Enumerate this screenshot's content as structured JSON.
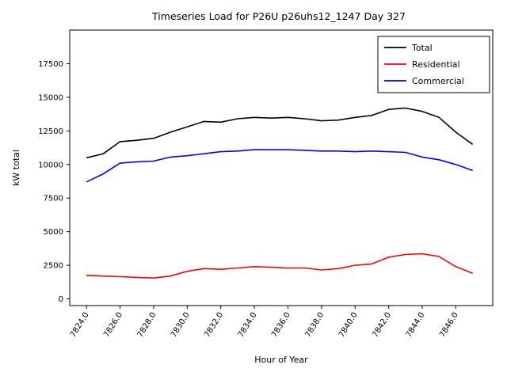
{
  "chart_data": {
    "type": "line",
    "title": "Timeseries Load for P26U p26uhs12_1247  Day 327",
    "xlabel": "Hour of Year",
    "ylabel": "kW total",
    "xlim": [
      7823.0,
      7848.2
    ],
    "ylim": [
      -500,
      20000
    ],
    "grid": false,
    "legend_position": "upper-right",
    "xtick_labels": [
      "7824.0",
      "7826.0",
      "7828.0",
      "7830.0",
      "7832.0",
      "7834.0",
      "7836.0",
      "7838.0",
      "7840.0",
      "7842.0",
      "7844.0",
      "7846.0"
    ],
    "xtick_values": [
      7824,
      7826,
      7828,
      7830,
      7832,
      7834,
      7836,
      7838,
      7840,
      7842,
      7844,
      7846
    ],
    "ytick_values": [
      0,
      2500,
      5000,
      7500,
      10000,
      12500,
      15000,
      17500
    ],
    "x": [
      7824,
      7825,
      7826,
      7827,
      7828,
      7829,
      7830,
      7831,
      7832,
      7833,
      7834,
      7835,
      7836,
      7837,
      7838,
      7839,
      7840,
      7841,
      7842,
      7843,
      7844,
      7845,
      7846,
      7847
    ],
    "series": [
      {
        "name": "Total",
        "color": "#000000",
        "values": [
          10500,
          10800,
          11700,
          11800,
          11950,
          12400,
          12800,
          13200,
          13150,
          13400,
          13500,
          13450,
          13500,
          13400,
          13250,
          13300,
          13500,
          13650,
          14100,
          14200,
          13950,
          13500,
          12400,
          11500
        ]
      },
      {
        "name": "Residential",
        "color": "#ff0000",
        "values": [
          1750,
          1700,
          1650,
          1600,
          1550,
          1700,
          2050,
          2250,
          2200,
          2300,
          2400,
          2350,
          2300,
          2300,
          2150,
          2250,
          2500,
          2600,
          3100,
          3300,
          3350,
          3150,
          2400,
          1900
        ]
      },
      {
        "name": "Commercial",
        "color": "#0000ff",
        "values": [
          8700,
          9300,
          10100,
          10200,
          10250,
          10550,
          10650,
          10800,
          10950,
          11000,
          11100,
          11100,
          11100,
          11050,
          11000,
          11000,
          10950,
          11000,
          10950,
          10900,
          10550,
          10350,
          10000,
          9550
        ]
      }
    ]
  }
}
